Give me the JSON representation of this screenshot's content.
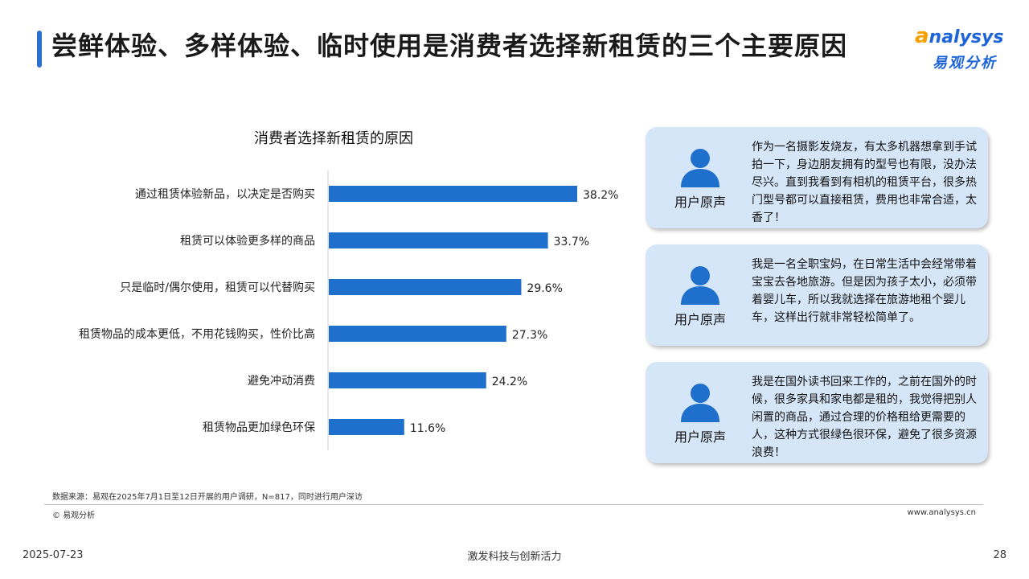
{
  "header": {
    "title": "尝鲜体验、多样体验、临时使用是消费者选择新租赁的三个主要原因",
    "logo_text": "nalysys",
    "logo_letter": "a",
    "logo_sub": "易观分析"
  },
  "chart_data": {
    "type": "bar",
    "orientation": "horizontal",
    "title": "消费者选择新租赁的原因",
    "categories": [
      "通过租赁体验新品，以决定是否购买",
      "租赁可以体验更多样的商品",
      "只是临时/偶尔使用，租赁可以代替购买",
      "租赁物品的成本更低，不用花钱购买，性价比高",
      "避免冲动消费",
      "租赁物品更加绿色环保"
    ],
    "values": [
      38.2,
      33.7,
      29.6,
      27.3,
      24.2,
      11.6
    ],
    "value_labels": [
      "38.2%",
      "33.7%",
      "29.6%",
      "27.3%",
      "24.2%",
      "11.6%"
    ],
    "unit": "%",
    "xlim": [
      0,
      45
    ],
    "bar_color": "#1f6fcc",
    "grid": false
  },
  "quotes": [
    {
      "label": "用户原声",
      "text": "作为一名摄影发烧友，有太多机器想拿到手试拍一下，身边朋友拥有的型号也有限，没办法尽兴。直到我看到有相机的租赁平台，很多热门型号都可以直接租赁，费用也非常合适，太香了！"
    },
    {
      "label": "用户原声",
      "text": "我是一名全职宝妈，在日常生活中会经常带着宝宝去各地旅游。但是因为孩子太小，必须带着婴儿车，所以我就选择在旅游地租个婴儿车，这样出行就非常轻松简单了。"
    },
    {
      "label": "用户原声",
      "text": "我是在国外读书回来工作的，之前在国外的时候，很多家具和家电都是租的，我觉得把别人闲置的商品，通过合理的价格租给更需要的人，这种方式很绿色很环保，避免了很多资源浪费！"
    }
  ],
  "colors": {
    "accent": "#2d6fd1",
    "card_bg": "#d6e6f9",
    "user_icon": "#1f6fcc"
  },
  "icons": {
    "user": "user-icon"
  },
  "footer": {
    "source": "数据来源：易观在2025年7月1日至12日开展的用户调研，N=817，同时进行用户深访",
    "copyright": "© 易观分析",
    "website": "www.analysys.cn",
    "date": "2025-07-23",
    "slogan": "激发科技与创新活力",
    "page": "28"
  }
}
